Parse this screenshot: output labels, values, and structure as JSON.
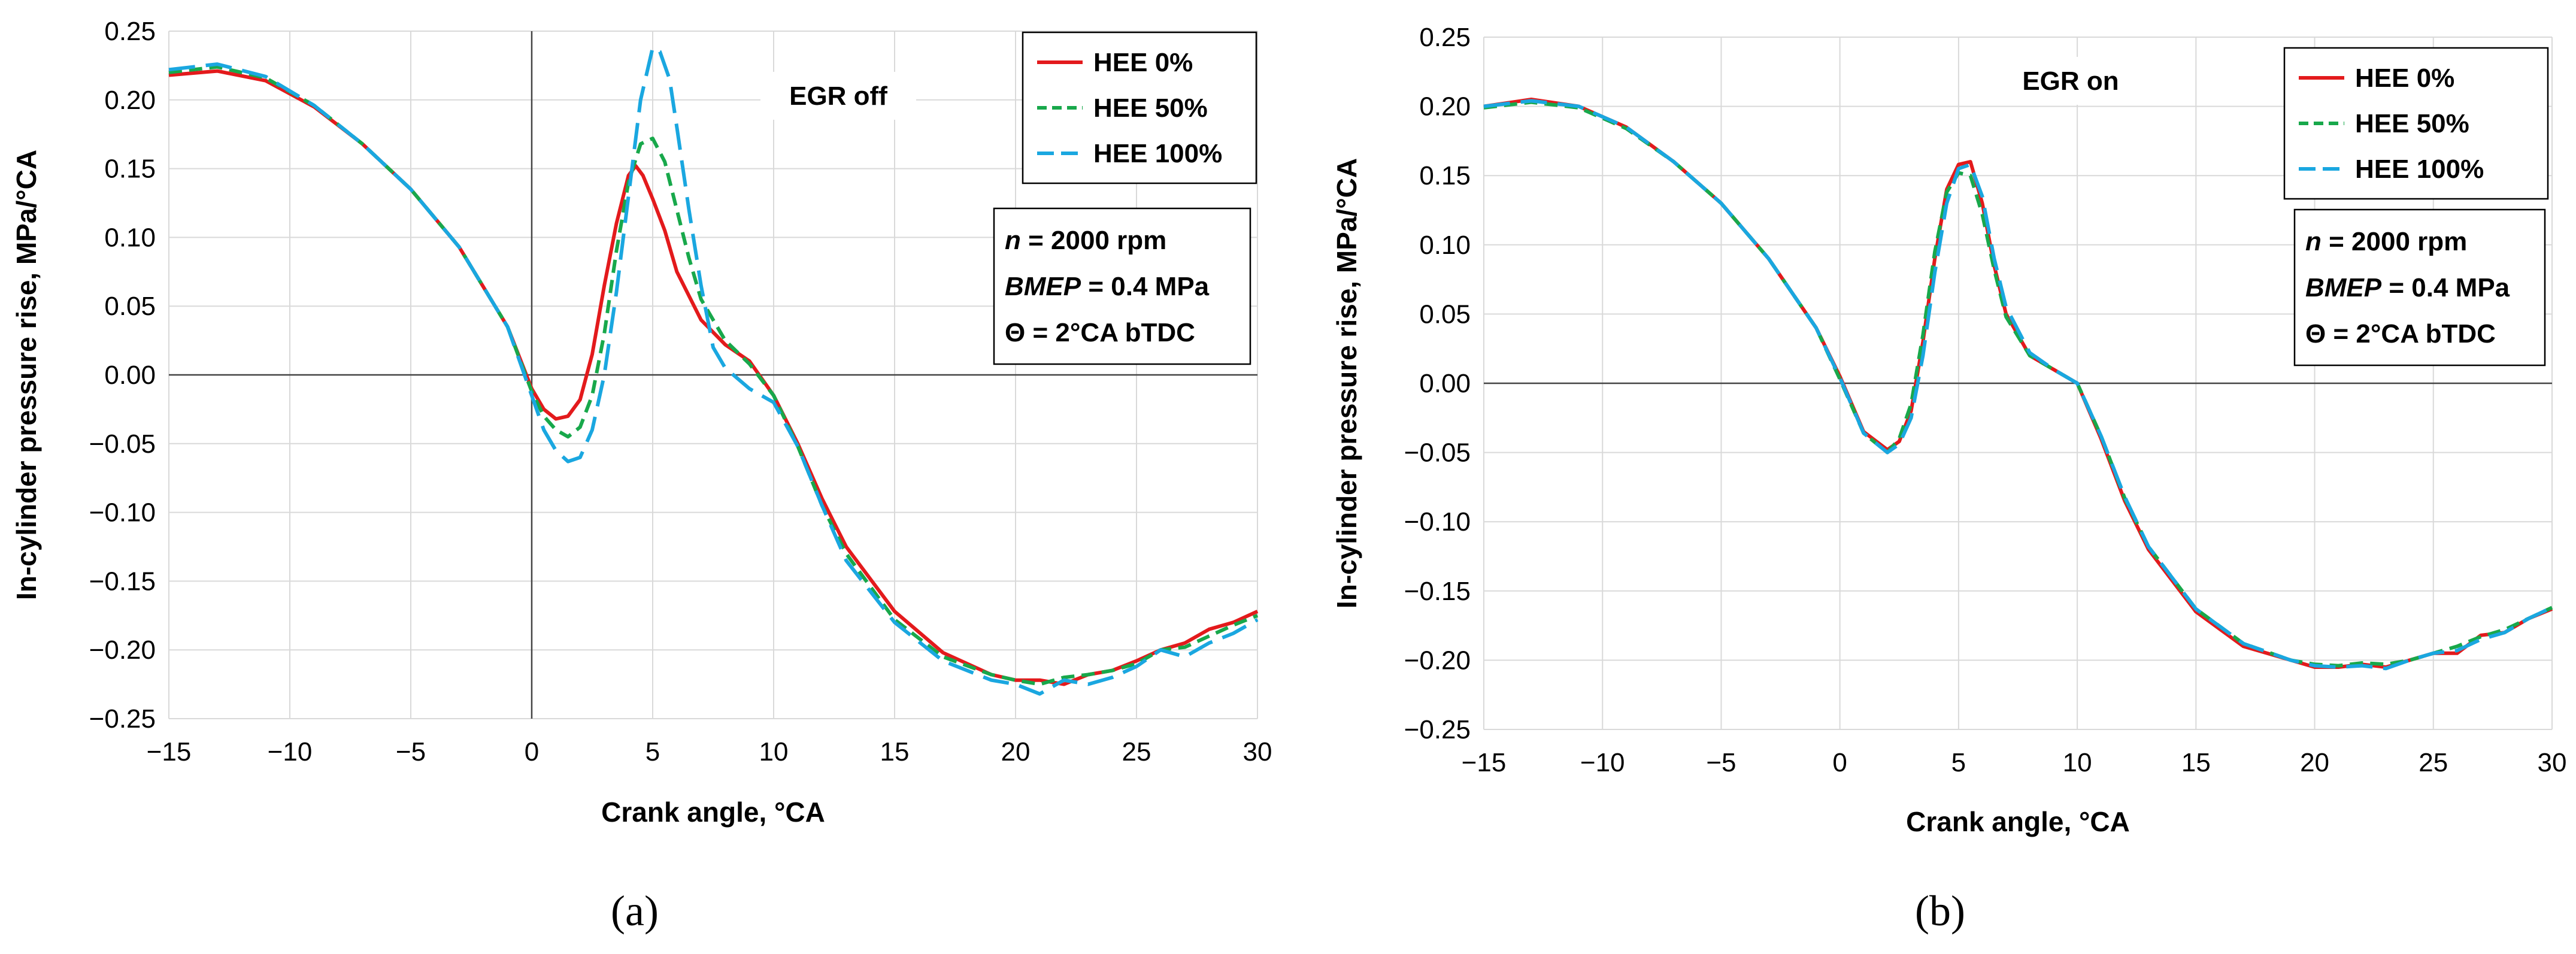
{
  "chart_data": [
    {
      "type": "line",
      "panel": "a",
      "panel_label": "(a)",
      "xlabel": "Crank angle, °CA",
      "ylabel": "In-cylinder pressure rise, MPa/°CA",
      "xlim": [
        -15,
        30
      ],
      "ylim": [
        -0.25,
        0.25
      ],
      "xticks": [
        -15,
        -10,
        -5,
        0,
        5,
        10,
        15,
        20,
        25,
        30
      ],
      "xtick_labels": [
        "−15",
        "−10",
        "−5",
        "0",
        "5",
        "10",
        "15",
        "20",
        "25",
        "30"
      ],
      "yticks": [
        0.25,
        0.2,
        0.15,
        0.1,
        0.05,
        0.0,
        -0.05,
        -0.1,
        -0.15,
        -0.2,
        -0.25
      ],
      "ytick_labels": [
        "0.25",
        "0.20",
        "0.15",
        "0.10",
        "0.05",
        "0.00",
        "−0.05",
        "−0.10",
        "−0.15",
        "−0.20",
        "−0.25"
      ],
      "grid": true,
      "vline_at_x0": true,
      "annotation": "EGR off",
      "conditions": {
        "n_var": "n",
        "n_val": " = 2000 rpm",
        "bmep_var": "BMEP",
        "bmep_val": " = 0.4 MPa",
        "theta": "Θ = 2°CA bTDC"
      },
      "legend_position": "top-right",
      "series": [
        {
          "name": "HEE 0%",
          "color": "#e31a1c",
          "style": "solid",
          "x": [
            -15,
            -13,
            -11,
            -9,
            -7,
            -5,
            -3,
            -1,
            0,
            0.5,
            1,
            1.5,
            2,
            2.5,
            3,
            3.5,
            4,
            4.3,
            4.6,
            5,
            5.5,
            6,
            7,
            8,
            9,
            10,
            11,
            12,
            13,
            15,
            17,
            19,
            20,
            21,
            22,
            23,
            24,
            25,
            26,
            27,
            28,
            29,
            30
          ],
          "y": [
            0.218,
            0.221,
            0.214,
            0.195,
            0.168,
            0.135,
            0.093,
            0.035,
            -0.01,
            -0.025,
            -0.032,
            -0.03,
            -0.018,
            0.015,
            0.065,
            0.11,
            0.145,
            0.152,
            0.145,
            0.128,
            0.105,
            0.075,
            0.04,
            0.022,
            0.01,
            -0.015,
            -0.05,
            -0.09,
            -0.125,
            -0.172,
            -0.202,
            -0.218,
            -0.222,
            -0.222,
            -0.225,
            -0.218,
            -0.215,
            -0.208,
            -0.2,
            -0.195,
            -0.185,
            -0.18,
            -0.172
          ]
        },
        {
          "name": "HEE 50%",
          "color": "#18a84b",
          "style": "dashed",
          "x": [
            -15,
            -13,
            -11,
            -9,
            -7,
            -5,
            -3,
            -1,
            0,
            0.5,
            1,
            1.5,
            2,
            2.5,
            3,
            3.5,
            4,
            4.5,
            5,
            5.5,
            6,
            6.5,
            7,
            8,
            9,
            10,
            11,
            12,
            13,
            15,
            17,
            19,
            20,
            21,
            22,
            23,
            24,
            25,
            26,
            27,
            28,
            29,
            30
          ],
          "y": [
            0.22,
            0.224,
            0.216,
            0.196,
            0.168,
            0.135,
            0.093,
            0.035,
            -0.012,
            -0.03,
            -0.04,
            -0.045,
            -0.038,
            -0.015,
            0.03,
            0.09,
            0.14,
            0.168,
            0.172,
            0.155,
            0.12,
            0.085,
            0.055,
            0.025,
            0.008,
            -0.015,
            -0.052,
            -0.095,
            -0.13,
            -0.178,
            -0.205,
            -0.218,
            -0.222,
            -0.225,
            -0.22,
            -0.218,
            -0.215,
            -0.21,
            -0.2,
            -0.198,
            -0.19,
            -0.182,
            -0.175
          ]
        },
        {
          "name": "HEE 100%",
          "color": "#1aa7e0",
          "style": "longdash",
          "x": [
            -15,
            -13,
            -11,
            -9,
            -7,
            -5,
            -3,
            -1,
            0,
            0.5,
            1,
            1.5,
            2,
            2.5,
            3,
            3.5,
            4,
            4.5,
            5,
            5.3,
            5.7,
            6,
            6.5,
            7,
            7.5,
            8,
            9,
            10,
            11,
            12,
            13,
            15,
            17,
            19,
            20,
            21,
            22,
            23,
            24,
            25,
            26,
            27,
            28,
            29,
            30
          ],
          "y": [
            0.222,
            0.226,
            0.217,
            0.196,
            0.168,
            0.135,
            0.093,
            0.035,
            -0.015,
            -0.04,
            -0.055,
            -0.063,
            -0.06,
            -0.04,
            0.0,
            0.06,
            0.13,
            0.2,
            0.238,
            0.235,
            0.215,
            0.18,
            0.12,
            0.065,
            0.02,
            0.005,
            -0.01,
            -0.02,
            -0.052,
            -0.095,
            -0.135,
            -0.18,
            -0.208,
            -0.222,
            -0.225,
            -0.232,
            -0.222,
            -0.225,
            -0.22,
            -0.212,
            -0.2,
            -0.205,
            -0.195,
            -0.188,
            -0.178
          ]
        }
      ]
    },
    {
      "type": "line",
      "panel": "b",
      "panel_label": "(b)",
      "xlabel": "Crank angle, °CA",
      "ylabel": "In-cylinder pressure rise, MPa/°CA",
      "xlim": [
        -15,
        30
      ],
      "ylim": [
        -0.25,
        0.25
      ],
      "xticks": [
        -15,
        -10,
        -5,
        0,
        5,
        10,
        15,
        20,
        25,
        30
      ],
      "xtick_labels": [
        "−15",
        "−10",
        "−5",
        "0",
        "5",
        "10",
        "15",
        "20",
        "25",
        "30"
      ],
      "yticks": [
        0.25,
        0.2,
        0.15,
        0.1,
        0.05,
        0.0,
        -0.05,
        -0.1,
        -0.15,
        -0.2,
        -0.25
      ],
      "ytick_labels": [
        "0.25",
        "0.20",
        "0.15",
        "0.10",
        "0.05",
        "0.00",
        "−0.05",
        "−0.10",
        "−0.15",
        "−0.20",
        "−0.25"
      ],
      "grid": true,
      "vline_at_x0": false,
      "annotation": "EGR on",
      "conditions": {
        "n_var": "n",
        "n_val": " = 2000 rpm",
        "bmep_var": "BMEP",
        "bmep_val": " = 0.4 MPa",
        "theta": "Θ = 2°CA bTDC"
      },
      "legend_position": "top-right",
      "series": [
        {
          "name": "HEE 0%",
          "color": "#e31a1c",
          "style": "solid",
          "x": [
            -15,
            -13,
            -11,
            -9,
            -7,
            -5,
            -3,
            -1,
            0,
            1,
            2,
            2.5,
            3,
            3.5,
            4,
            4.5,
            5,
            5.5,
            6,
            6.5,
            7,
            8,
            9,
            10,
            11,
            12,
            13,
            15,
            17,
            19,
            20,
            21,
            22,
            23,
            24,
            25,
            26,
            27,
            28,
            29,
            30
          ],
          "y": [
            0.2,
            0.205,
            0.2,
            0.185,
            0.16,
            0.13,
            0.09,
            0.04,
            0.005,
            -0.035,
            -0.048,
            -0.042,
            -0.02,
            0.03,
            0.09,
            0.14,
            0.158,
            0.16,
            0.13,
            0.085,
            0.05,
            0.02,
            0.01,
            0.0,
            -0.04,
            -0.085,
            -0.12,
            -0.165,
            -0.19,
            -0.2,
            -0.205,
            -0.205,
            -0.203,
            -0.205,
            -0.2,
            -0.195,
            -0.195,
            -0.182,
            -0.18,
            -0.17,
            -0.163
          ]
        },
        {
          "name": "HEE 50%",
          "color": "#18a84b",
          "style": "dashed",
          "x": [
            -15,
            -13,
            -11,
            -9,
            -7,
            -5,
            -3,
            -1,
            0,
            1,
            2,
            2.5,
            3,
            3.5,
            4,
            4.5,
            5,
            5.5,
            6,
            6.5,
            7,
            8,
            9,
            10,
            11,
            12,
            13,
            15,
            17,
            19,
            20,
            21,
            22,
            23,
            24,
            25,
            26,
            27,
            28,
            29,
            30
          ],
          "y": [
            0.199,
            0.203,
            0.199,
            0.184,
            0.16,
            0.13,
            0.09,
            0.04,
            0.003,
            -0.036,
            -0.05,
            -0.04,
            -0.015,
            0.035,
            0.095,
            0.138,
            0.152,
            0.15,
            0.122,
            0.082,
            0.048,
            0.02,
            0.01,
            0.0,
            -0.038,
            -0.083,
            -0.118,
            -0.163,
            -0.188,
            -0.2,
            -0.203,
            -0.204,
            -0.202,
            -0.203,
            -0.2,
            -0.195,
            -0.19,
            -0.183,
            -0.178,
            -0.17,
            -0.162
          ]
        },
        {
          "name": "HEE 100%",
          "color": "#1aa7e0",
          "style": "longdash",
          "x": [
            -15,
            -13,
            -11,
            -9,
            -7,
            -5,
            -3,
            -1,
            0,
            1,
            2,
            2.5,
            3,
            3.5,
            4,
            4.5,
            5,
            5.5,
            6,
            6.5,
            7,
            8,
            9,
            10,
            11,
            12,
            13,
            15,
            17,
            19,
            20,
            21,
            22,
            23,
            24,
            25,
            26,
            27,
            28,
            29,
            30
          ],
          "y": [
            0.2,
            0.204,
            0.2,
            0.185,
            0.16,
            0.13,
            0.09,
            0.04,
            0.004,
            -0.036,
            -0.05,
            -0.044,
            -0.025,
            0.02,
            0.08,
            0.13,
            0.155,
            0.158,
            0.135,
            0.09,
            0.055,
            0.022,
            0.01,
            0.0,
            -0.038,
            -0.082,
            -0.118,
            -0.163,
            -0.188,
            -0.2,
            -0.204,
            -0.205,
            -0.204,
            -0.206,
            -0.2,
            -0.195,
            -0.193,
            -0.185,
            -0.18,
            -0.17,
            -0.162
          ]
        }
      ]
    }
  ]
}
